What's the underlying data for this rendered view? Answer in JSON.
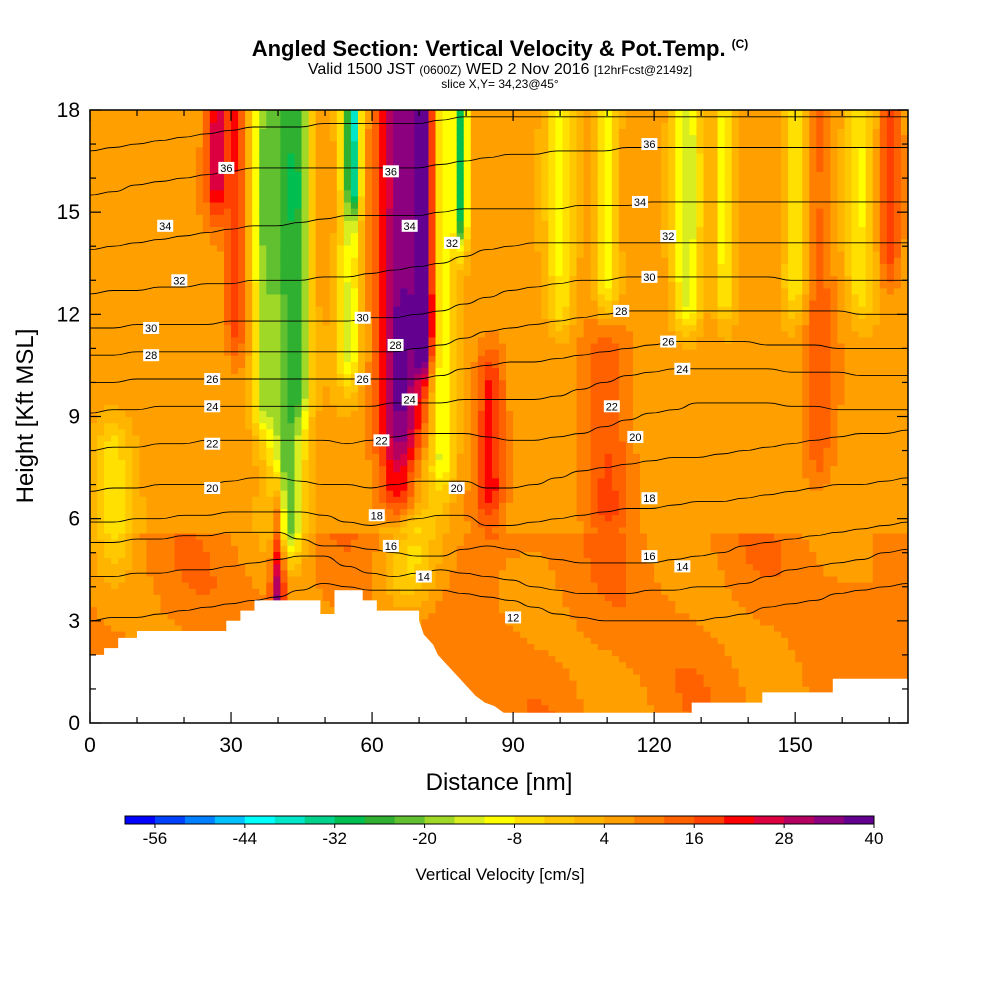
{
  "title": "Angled Section: Vertical Velocity & Pot.Temp.",
  "title_tag": "(C)",
  "subtitle_main_a": "Valid 1500 JST",
  "subtitle_small_a": "(0600Z)",
  "subtitle_main_b": "WED 2 Nov 2016",
  "subtitle_small_b": "[12hrFcst@2149z]",
  "slice_label": "slice X,Y= 34,23@45°",
  "chart_data": {
    "type": "heatmap",
    "xlabel": "Distance [nm]",
    "ylabel": "Height [Kft MSL]",
    "xlim": [
      0,
      174
    ],
    "ylim": [
      0,
      18
    ],
    "x_ticks": [
      "0",
      "30",
      "60",
      "90",
      "120",
      "150"
    ],
    "y_ticks": [
      "0",
      "3",
      "6",
      "9",
      "12",
      "15",
      "18"
    ],
    "colorbar": {
      "label": "Vertical Velocity [cm/s]",
      "tick_labels": [
        "-56",
        "-44",
        "-32",
        "-20",
        "-8",
        "4",
        "16",
        "28",
        "40"
      ],
      "colors": [
        "#0000ff",
        "#0040ff",
        "#0080ff",
        "#00c0ff",
        "#00ffff",
        "#00e6c8",
        "#00d28c",
        "#00be50",
        "#30b030",
        "#60c030",
        "#a0d828",
        "#d8ee20",
        "#ffff00",
        "#ffe000",
        "#ffc800",
        "#ffb400",
        "#ffa000",
        "#ff8000",
        "#ff6000",
        "#ff4000",
        "#ff0000",
        "#dc0040",
        "#b40060",
        "#8c0080",
        "#640090"
      ]
    },
    "terrain_kft": [
      [
        0,
        2.0
      ],
      [
        3,
        2.0
      ],
      [
        3,
        2.2
      ],
      [
        6,
        2.2
      ],
      [
        6,
        2.5
      ],
      [
        10,
        2.5
      ],
      [
        10,
        2.7
      ],
      [
        29,
        2.7
      ],
      [
        29,
        3.0
      ],
      [
        32,
        3.0
      ],
      [
        32,
        3.3
      ],
      [
        35,
        3.3
      ],
      [
        35,
        3.6
      ],
      [
        49,
        3.6
      ],
      [
        49,
        3.2
      ],
      [
        52,
        3.2
      ],
      [
        52,
        3.9
      ],
      [
        58,
        3.9
      ],
      [
        58,
        3.6
      ],
      [
        61,
        3.6
      ],
      [
        61,
        3.3
      ],
      [
        70,
        3.3
      ],
      [
        70,
        3.0
      ],
      [
        71,
        2.6
      ],
      [
        73,
        2.3
      ],
      [
        74,
        2.0
      ],
      [
        76,
        1.7
      ],
      [
        78,
        1.4
      ],
      [
        80,
        1.1
      ],
      [
        82,
        0.8
      ],
      [
        84,
        0.6
      ],
      [
        86,
        0.5
      ],
      [
        88,
        0.3
      ],
      [
        128,
        0.3
      ],
      [
        128,
        0.6
      ],
      [
        143,
        0.6
      ],
      [
        143,
        0.9
      ],
      [
        158,
        0.9
      ],
      [
        158,
        1.3
      ],
      [
        174,
        1.3
      ]
    ],
    "theta_contours": [
      {
        "label": "12",
        "y": [
          3.0,
          3.1,
          3.1,
          3.2,
          3.3,
          3.4,
          3.5,
          3.6,
          3.7,
          3.9,
          4.1,
          4.0,
          3.9,
          3.9,
          3.9,
          3.9,
          3.8,
          3.7,
          3.6,
          3.4,
          3.2,
          3.1,
          3.0,
          3.0,
          3.0,
          3.0,
          3.0,
          3.1,
          3.2,
          3.4,
          3.5,
          3.6,
          3.8,
          3.9,
          4.0,
          4.1
        ],
        "labels": [
          [
            90,
            3.1
          ]
        ]
      },
      {
        "label": "14",
        "y": [
          4.3,
          4.3,
          4.4,
          4.4,
          4.5,
          4.5,
          4.6,
          4.7,
          4.8,
          4.9,
          4.9,
          4.6,
          4.4,
          4.3,
          4.4,
          4.5,
          4.4,
          4.3,
          4.2,
          4.0,
          3.9,
          3.8,
          3.8,
          3.8,
          3.9,
          3.9,
          4.0,
          4.0,
          4.1,
          4.3,
          4.5,
          4.6,
          4.7,
          4.8,
          5.0,
          5.1
        ],
        "labels": [
          [
            71,
            4.3
          ],
          [
            126,
            4.6
          ]
        ]
      },
      {
        "label": "16",
        "y": [
          5.3,
          5.3,
          5.4,
          5.4,
          5.5,
          5.5,
          5.6,
          5.6,
          5.6,
          5.4,
          5.2,
          5.2,
          5.1,
          5.0,
          4.9,
          4.9,
          5.1,
          5.2,
          5.1,
          4.9,
          4.8,
          4.7,
          4.7,
          4.7,
          4.7,
          4.8,
          4.9,
          5.0,
          5.2,
          5.3,
          5.4,
          5.5,
          5.6,
          5.7,
          5.8,
          5.9
        ],
        "labels": [
          [
            64,
            5.2
          ],
          [
            119,
            4.9
          ]
        ]
      },
      {
        "label": "18",
        "y": [
          5.9,
          5.9,
          6.0,
          6.0,
          6.1,
          6.1,
          6.2,
          6.2,
          6.2,
          6.2,
          6.1,
          5.9,
          5.8,
          5.9,
          6.0,
          6.1,
          6.1,
          5.8,
          5.8,
          5.9,
          6.0,
          6.1,
          6.2,
          6.3,
          6.3,
          6.4,
          6.5,
          6.5,
          6.6,
          6.7,
          6.8,
          6.9,
          7.0,
          7.0,
          7.1,
          7.2
        ],
        "labels": [
          [
            61,
            6.1
          ],
          [
            119,
            6.6
          ]
        ]
      },
      {
        "label": "20",
        "y": [
          6.8,
          6.9,
          6.9,
          7.0,
          7.0,
          7.0,
          7.1,
          7.2,
          7.2,
          7.1,
          7.0,
          7.0,
          6.9,
          7.0,
          7.1,
          7.1,
          7.1,
          6.9,
          6.9,
          7.0,
          7.2,
          7.4,
          7.5,
          7.6,
          7.7,
          7.8,
          7.8,
          7.9,
          8.0,
          8.1,
          8.2,
          8.3,
          8.4,
          8.5,
          8.5,
          8.6
        ],
        "labels": [
          [
            26,
            6.9
          ],
          [
            78,
            6.9
          ],
          [
            116,
            8.4
          ]
        ]
      },
      {
        "label": "22",
        "y": [
          8.0,
          8.1,
          8.1,
          8.2,
          8.2,
          8.3,
          8.3,
          8.3,
          8.3,
          8.3,
          8.3,
          8.2,
          8.3,
          8.4,
          8.5,
          8.5,
          8.5,
          8.4,
          8.3,
          8.3,
          8.4,
          8.5,
          8.7,
          8.9,
          9.1,
          9.2,
          9.4,
          9.4,
          9.4,
          9.4,
          9.3,
          9.3,
          9.2,
          9.2,
          9.2,
          9.2
        ],
        "labels": [
          [
            26,
            8.2
          ],
          [
            62,
            8.3
          ],
          [
            111,
            9.3
          ]
        ]
      },
      {
        "label": "24",
        "y": [
          9.1,
          9.2,
          9.2,
          9.3,
          9.3,
          9.3,
          9.3,
          9.3,
          9.3,
          9.3,
          9.3,
          9.3,
          9.3,
          9.4,
          9.4,
          9.4,
          9.5,
          9.5,
          9.5,
          9.5,
          9.6,
          9.8,
          10.0,
          10.2,
          10.3,
          10.4,
          10.4,
          10.4,
          10.4,
          10.4,
          10.3,
          10.3,
          10.3,
          10.2,
          10.2,
          10.2
        ],
        "labels": [
          [
            26,
            9.3
          ],
          [
            68,
            9.5
          ],
          [
            126,
            10.4
          ]
        ]
      },
      {
        "label": "26",
        "y": [
          10.0,
          10.0,
          10.1,
          10.1,
          10.1,
          10.1,
          10.1,
          10.1,
          10.1,
          10.1,
          10.1,
          10.1,
          10.1,
          10.1,
          10.1,
          10.2,
          10.4,
          10.5,
          10.6,
          10.6,
          10.7,
          10.8,
          10.9,
          11.0,
          11.1,
          11.2,
          11.2,
          11.2,
          11.2,
          11.1,
          11.1,
          11.1,
          11.0,
          11.0,
          11.0,
          11.0
        ],
        "labels": [
          [
            26,
            10.1
          ],
          [
            58,
            10.1
          ],
          [
            123,
            11.2
          ]
        ]
      },
      {
        "label": "28",
        "y": [
          10.8,
          10.8,
          10.9,
          10.9,
          10.9,
          10.9,
          10.9,
          10.9,
          10.9,
          10.9,
          10.9,
          10.9,
          10.9,
          10.9,
          11.0,
          11.1,
          11.3,
          11.5,
          11.6,
          11.7,
          11.8,
          11.9,
          12.0,
          12.1,
          12.1,
          12.1,
          12.1,
          12.1,
          12.1,
          12.1,
          12.1,
          12.1,
          12.1,
          12.0,
          12.0,
          12.0
        ],
        "labels": [
          [
            13,
            10.8
          ],
          [
            65,
            11.1
          ],
          [
            113,
            12.1
          ]
        ]
      },
      {
        "label": "30",
        "y": [
          11.6,
          11.6,
          11.7,
          11.7,
          11.7,
          11.7,
          11.8,
          11.8,
          11.8,
          11.8,
          11.8,
          11.8,
          11.9,
          11.9,
          12.0,
          12.1,
          12.3,
          12.5,
          12.7,
          12.8,
          12.9,
          13.0,
          13.0,
          13.1,
          13.1,
          13.1,
          13.1,
          13.1,
          13.1,
          13.1,
          13.0,
          13.0,
          13.0,
          13.0,
          13.0,
          13.0
        ],
        "labels": [
          [
            13,
            11.6
          ],
          [
            58,
            11.9
          ],
          [
            119,
            13.1
          ]
        ]
      },
      {
        "label": "32",
        "y": [
          12.6,
          12.7,
          12.7,
          12.8,
          12.8,
          12.9,
          12.9,
          13.0,
          13.0,
          13.0,
          13.1,
          13.1,
          13.2,
          13.3,
          13.4,
          13.5,
          13.7,
          13.9,
          14.0,
          14.1,
          14.1,
          14.1,
          14.1,
          14.1,
          14.1,
          14.1,
          14.1,
          14.1,
          14.1,
          14.1,
          14.1,
          14.1,
          14.1,
          14.1,
          14.1,
          14.1
        ],
        "labels": [
          [
            19,
            13.0
          ],
          [
            77,
            14.1
          ],
          [
            123,
            14.3
          ]
        ]
      },
      {
        "label": "34",
        "y": [
          13.9,
          14.0,
          14.1,
          14.2,
          14.3,
          14.4,
          14.5,
          14.6,
          14.6,
          14.7,
          14.8,
          14.9,
          14.9,
          14.9,
          14.9,
          15.0,
          15.1,
          15.1,
          15.1,
          15.1,
          15.1,
          15.2,
          15.2,
          15.2,
          15.3,
          15.3,
          15.3,
          15.3,
          15.3,
          15.3,
          15.3,
          15.3,
          15.3,
          15.3,
          15.3,
          15.3
        ],
        "labels": [
          [
            16,
            14.6
          ],
          [
            68,
            14.6
          ],
          [
            117,
            15.3
          ]
        ]
      },
      {
        "label": "36",
        "y": [
          15.5,
          15.6,
          15.8,
          15.9,
          16.0,
          16.1,
          16.2,
          16.3,
          16.3,
          16.3,
          16.3,
          16.3,
          16.3,
          16.3,
          16.3,
          16.4,
          16.5,
          16.6,
          16.7,
          16.7,
          16.8,
          16.8,
          16.8,
          16.9,
          16.9,
          16.9,
          16.9,
          16.9,
          16.9,
          16.9,
          16.9,
          16.9,
          16.9,
          16.9,
          16.9,
          16.9
        ],
        "labels": [
          [
            29,
            16.3
          ],
          [
            64,
            16.2
          ],
          [
            119,
            17.0
          ]
        ]
      },
      {
        "label": "",
        "y": [
          16.8,
          16.9,
          17.0,
          17.1,
          17.2,
          17.3,
          17.4,
          17.5,
          17.5,
          17.5,
          17.6,
          17.6,
          17.6,
          17.6,
          17.6,
          17.7,
          17.8,
          17.8,
          17.8,
          17.8,
          17.8,
          17.8,
          17.8,
          17.8,
          17.8,
          17.8,
          17.8,
          17.8,
          17.8,
          17.8,
          17.8,
          17.8,
          17.8,
          17.8,
          17.8,
          17.8
        ],
        "labels": []
      }
    ],
    "vv_features": [
      {
        "x": 42,
        "y0": 6.0,
        "y1": 18,
        "w": 3.5,
        "v": -30
      },
      {
        "x": 37,
        "y0": 9.5,
        "y1": 18,
        "w": 2.5,
        "v": -22
      },
      {
        "x": 45,
        "y0": 10.0,
        "y1": 18,
        "w": 2.0,
        "v": -16
      },
      {
        "x": 55,
        "y0": 11.0,
        "y1": 18,
        "w": 2.5,
        "v": -18
      },
      {
        "x": 56,
        "y0": 16.0,
        "y1": 18,
        "w": 1.5,
        "v": -30
      },
      {
        "x": 66,
        "y0": 7.0,
        "y1": 18,
        "w": 4.5,
        "v": 30
      },
      {
        "x": 71,
        "y0": 11.5,
        "y1": 18,
        "w": 2.0,
        "v": 40
      },
      {
        "x": 75,
        "y0": 8.0,
        "y1": 18,
        "w": 2.5,
        "v": -18
      },
      {
        "x": 79,
        "y0": 15.0,
        "y1": 18,
        "w": 1.5,
        "v": -36
      },
      {
        "x": 85,
        "y0": 7.0,
        "y1": 10.0,
        "w": 3.0,
        "v": 16
      },
      {
        "x": 100,
        "y0": 12.5,
        "y1": 18,
        "w": 3.0,
        "v": -14
      },
      {
        "x": 110,
        "y0": 13.0,
        "y1": 18,
        "w": 2.5,
        "v": -16
      },
      {
        "x": 127,
        "y0": 12.5,
        "y1": 18,
        "w": 3.0,
        "v": -20
      },
      {
        "x": 135,
        "y0": 13.0,
        "y1": 18,
        "w": 2.0,
        "v": -16
      },
      {
        "x": 150,
        "y0": 13.0,
        "y1": 18,
        "w": 2.5,
        "v": -14
      },
      {
        "x": 164,
        "y0": 13.0,
        "y1": 18,
        "w": 3.0,
        "v": -14
      },
      {
        "x": 31,
        "y0": 12.0,
        "y1": 18,
        "w": 2.0,
        "v": 14
      },
      {
        "x": 27,
        "y0": 16.0,
        "y1": 18,
        "w": 2.0,
        "v": 20
      },
      {
        "x": 110,
        "y0": 6.5,
        "y1": 11.0,
        "w": 5.0,
        "v": 10
      },
      {
        "x": 155,
        "y0": 8.0,
        "y1": 18,
        "w": 3.0,
        "v": 8
      },
      {
        "x": 170,
        "y0": 14.0,
        "y1": 18,
        "w": 2.0,
        "v": 12
      },
      {
        "x": 5,
        "y0": 5.7,
        "y1": 8.0,
        "w": 4.0,
        "v": -12
      },
      {
        "x": 40,
        "y0": 3.6,
        "y1": 6.0,
        "w": 1.5,
        "v": 26
      },
      {
        "x": 68,
        "y0": 4.5,
        "y1": 7.0,
        "w": 6.0,
        "v": -14
      }
    ]
  }
}
